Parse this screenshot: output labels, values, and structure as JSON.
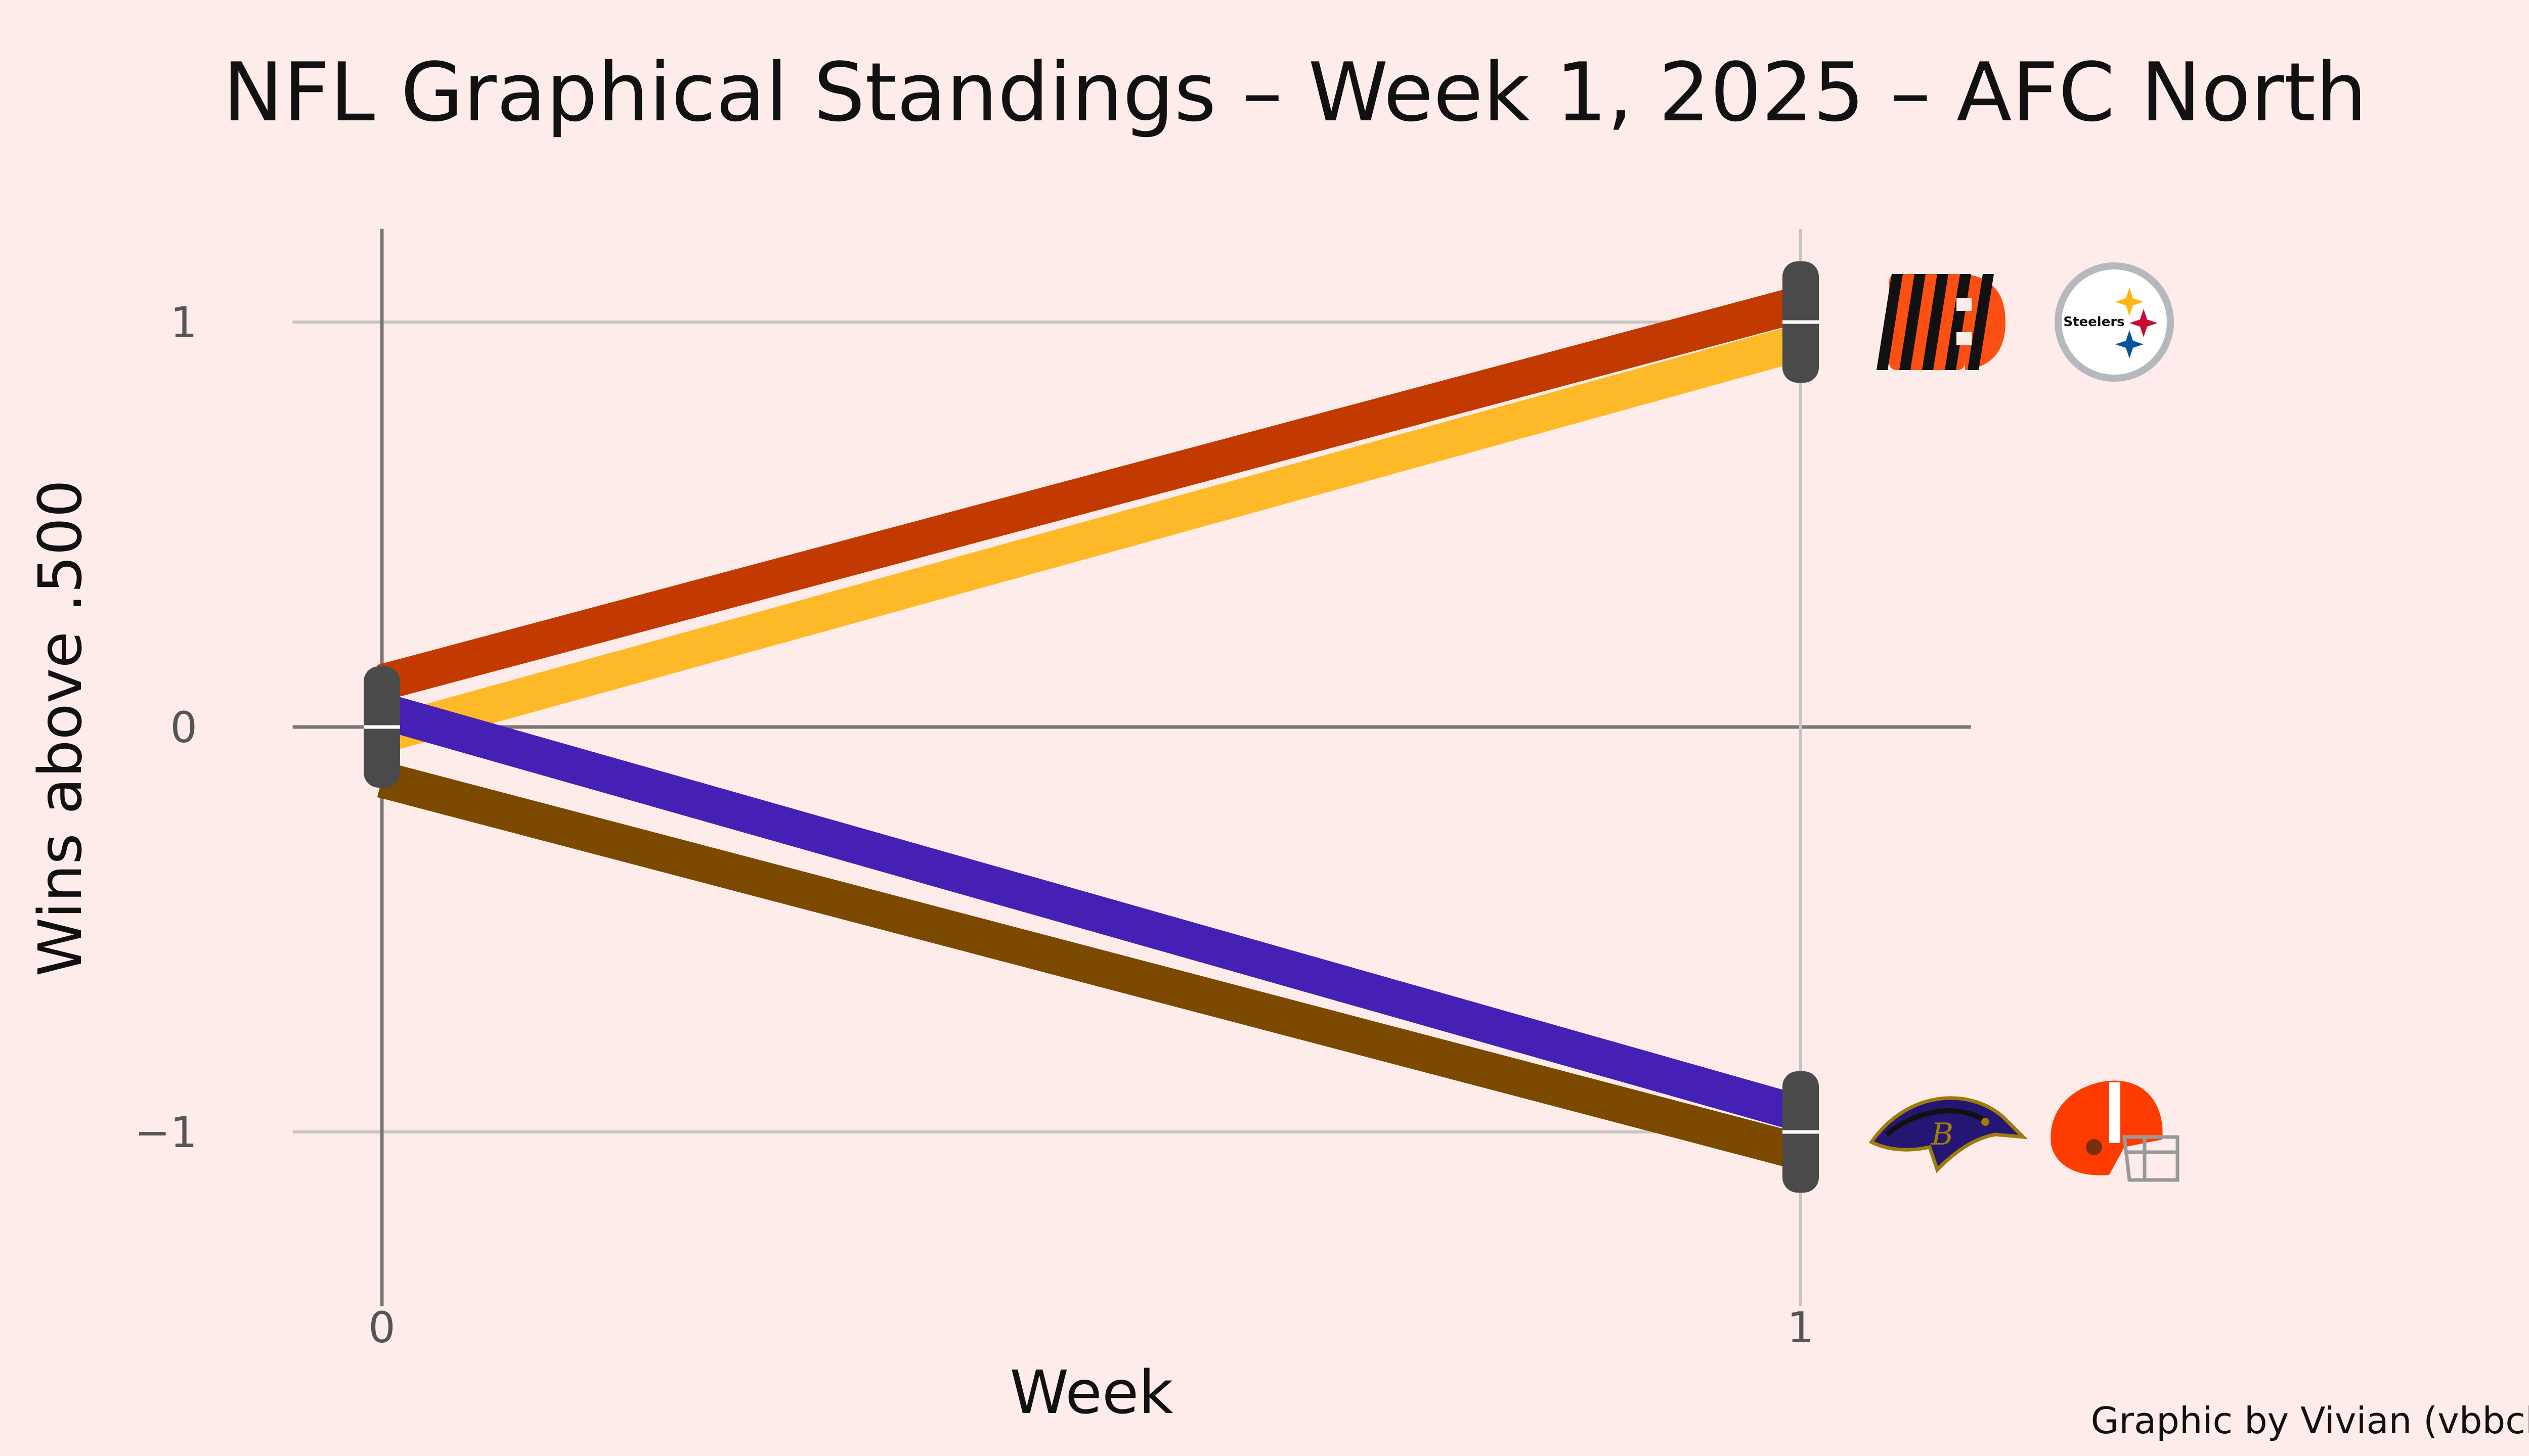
{
  "chart_data": {
    "type": "line",
    "title": "NFL Graphical Standings – Week 1, 2025 – AFC North",
    "xlabel": "Week",
    "ylabel": "Wins above .500",
    "x_ticks": [
      0,
      1
    ],
    "x_tick_labels": [
      "0",
      "1"
    ],
    "y_ticks": [
      1,
      0,
      -1
    ],
    "y_tick_labels": [
      "1",
      "0",
      "−1"
    ],
    "xlim": [
      -0.12,
      1.13
    ],
    "ylim": [
      -1.45,
      1.4
    ],
    "grid": true,
    "caption": "Graphic by Vivian (vbbcla)",
    "series": [
      {
        "team": "Bengals",
        "logo_icon": "bengals-logo-icon",
        "color": "#C23A00",
        "x": [
          0,
          1
        ],
        "y": [
          0,
          1
        ]
      },
      {
        "team": "Steelers",
        "logo_icon": "steelers-logo-icon",
        "color": "#FDB927",
        "x": [
          0,
          1
        ],
        "y": [
          0,
          1
        ]
      },
      {
        "team": "Ravens",
        "logo_icon": "ravens-logo-icon",
        "color": "#4520B5",
        "x": [
          0,
          1
        ],
        "y": [
          0,
          -1
        ]
      },
      {
        "team": "Browns",
        "logo_icon": "browns-logo-icon",
        "color": "#7B4A00",
        "x": [
          0,
          1
        ],
        "y": [
          0,
          -1
        ]
      }
    ],
    "colors": {
      "background": "#FDECEA",
      "cap": "#4A4A4A",
      "grid": "#C8C4C4",
      "axis": "#7A7777"
    }
  }
}
